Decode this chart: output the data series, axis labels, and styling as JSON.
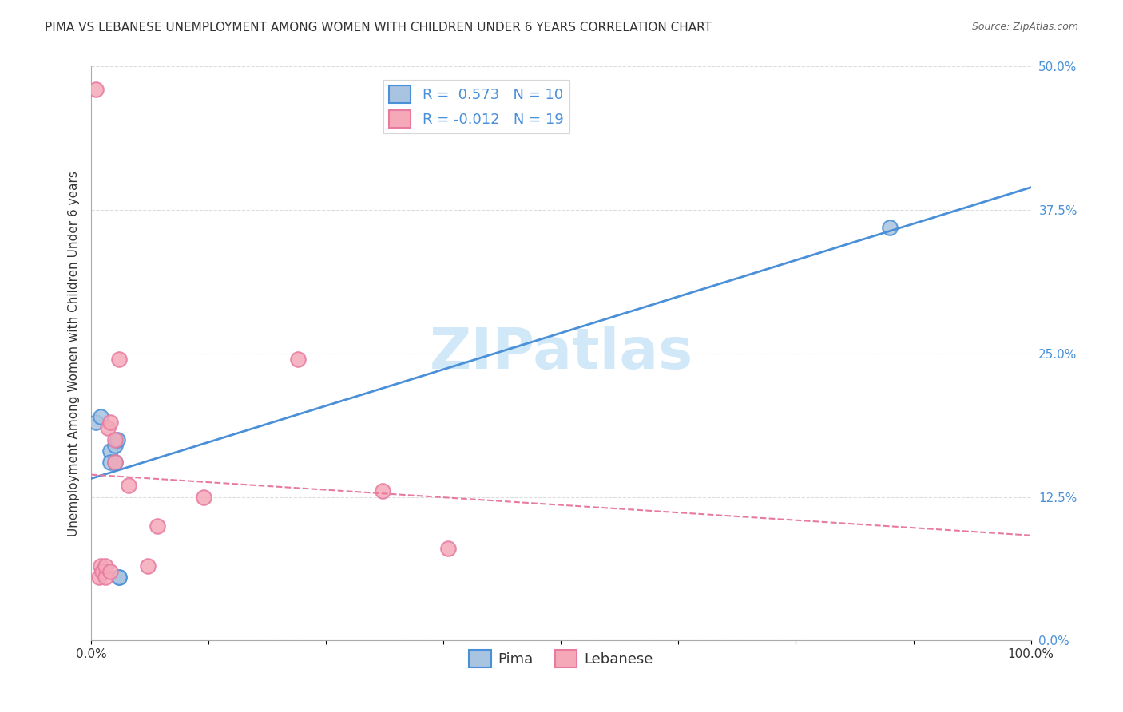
{
  "title": "PIMA VS LEBANESE UNEMPLOYMENT AMONG WOMEN WITH CHILDREN UNDER 6 YEARS CORRELATION CHART",
  "source": "Source: ZipAtlas.com",
  "ylabel": "Unemployment Among Women with Children Under 6 years",
  "ytick_labels": [
    "0.0%",
    "12.5%",
    "25.0%",
    "37.5%",
    "50.0%"
  ],
  "ytick_values": [
    0,
    0.125,
    0.25,
    0.375,
    0.5
  ],
  "xtick_values": [
    0,
    0.125,
    0.25,
    0.375,
    0.5,
    0.625,
    0.75,
    0.875,
    1.0
  ],
  "legend_label1": "Pima",
  "legend_label2": "Lebanese",
  "R1": 0.573,
  "N1": 10,
  "R2": -0.012,
  "N2": 19,
  "pima_color": "#a8c4e0",
  "lebanese_color": "#f4a8b8",
  "pima_line_color": "#4a90d9",
  "lebanese_line_color": "#e87aa0",
  "watermark": "ZIPatlas",
  "watermark_color": "#d0e8f8",
  "pima_x": [
    0.005,
    0.01,
    0.02,
    0.02,
    0.025,
    0.025,
    0.028,
    0.03,
    0.03,
    0.85
  ],
  "pima_y": [
    0.19,
    0.195,
    0.165,
    0.155,
    0.155,
    0.17,
    0.175,
    0.055,
    0.055,
    0.36
  ],
  "lebanese_x": [
    0.005,
    0.008,
    0.01,
    0.012,
    0.015,
    0.015,
    0.018,
    0.02,
    0.02,
    0.025,
    0.025,
    0.03,
    0.04,
    0.06,
    0.07,
    0.12,
    0.22,
    0.31,
    0.38
  ],
  "lebanese_y": [
    0.48,
    0.055,
    0.065,
    0.06,
    0.055,
    0.065,
    0.185,
    0.19,
    0.06,
    0.155,
    0.175,
    0.245,
    0.135,
    0.065,
    0.1,
    0.125,
    0.245,
    0.13,
    0.08
  ],
  "xlim": [
    0,
    1.0
  ],
  "ylim": [
    0,
    0.5
  ],
  "title_fontsize": 11,
  "axis_label_fontsize": 11,
  "tick_fontsize": 11,
  "legend_fontsize": 13,
  "background_color": "#ffffff",
  "grid_color": "#dddddd"
}
